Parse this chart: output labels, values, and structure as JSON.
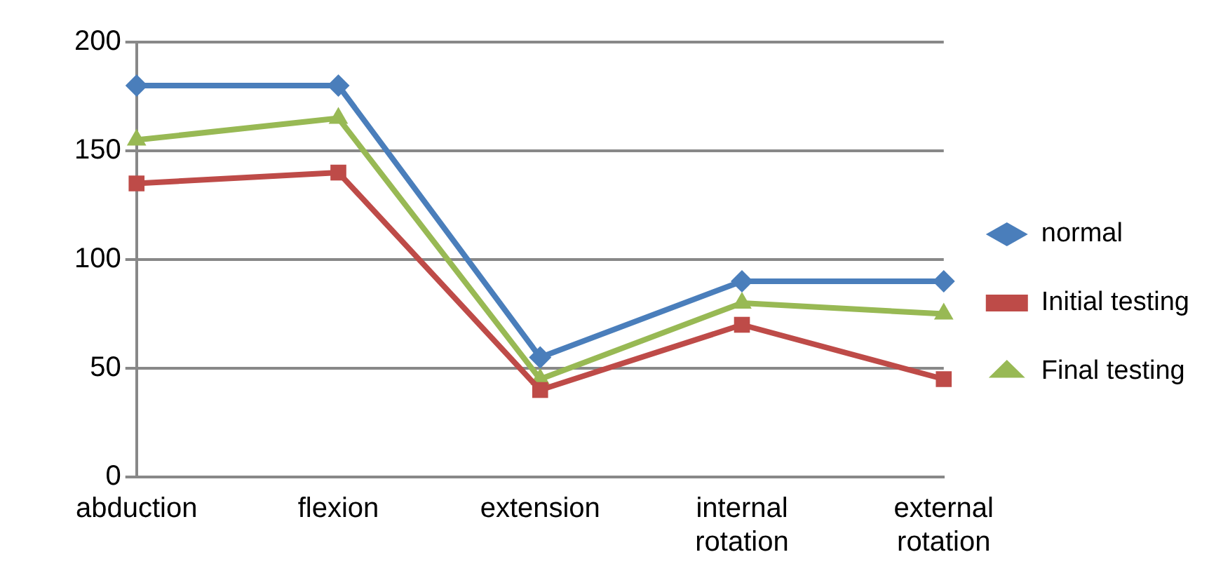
{
  "chart_data": {
    "type": "line",
    "categories": [
      "abduction",
      "flexion",
      "extension",
      "internal rotation",
      "external rotation"
    ],
    "series": [
      {
        "name": "normal",
        "color": "#4a7ebb",
        "marker": "diamond",
        "values": [
          180,
          180,
          55,
          90,
          90
        ]
      },
      {
        "name": "Initial testing",
        "color": "#be4b48",
        "marker": "square",
        "values": [
          135,
          140,
          40,
          70,
          45
        ]
      },
      {
        "name": "Final testing",
        "color": "#98b954",
        "marker": "triangle",
        "values": [
          155,
          165,
          45,
          80,
          75
        ]
      }
    ],
    "ylim": [
      0,
      200
    ],
    "yticks": [
      0,
      50,
      100,
      150,
      200
    ],
    "grid": "y",
    "legend": "right"
  }
}
